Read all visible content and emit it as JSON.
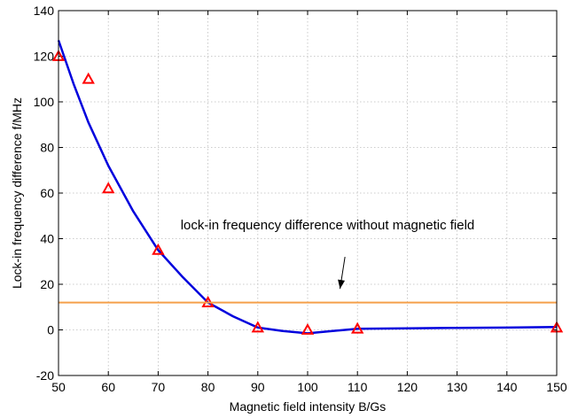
{
  "chart_data": {
    "type": "line",
    "title": "",
    "xlabel": "Magnetic field intensity B/Gs",
    "ylabel": "Lock-in frequency difference f/MHz",
    "xlim": [
      50,
      150
    ],
    "ylim": [
      -20,
      140
    ],
    "xticks": [
      50,
      60,
      70,
      80,
      90,
      100,
      110,
      120,
      130,
      140,
      150
    ],
    "yticks": [
      -20,
      0,
      20,
      40,
      60,
      80,
      100,
      120,
      140
    ],
    "grid": true,
    "series": [
      {
        "kind": "line",
        "color": "#0000dd",
        "x": [
          50,
          53,
          56,
          60,
          65,
          70,
          75,
          80,
          85,
          90,
          95,
          100,
          105,
          110,
          120,
          130,
          140,
          150
        ],
        "y": [
          127,
          108,
          91,
          72,
          52,
          35,
          23,
          12,
          6,
          1,
          -0.5,
          -1.5,
          -0.5,
          0.5,
          0.7,
          0.9,
          1.0,
          1.3
        ]
      },
      {
        "kind": "markers",
        "marker": "triangle",
        "color": "#ff0000",
        "x": [
          50,
          56,
          60,
          70,
          80,
          90,
          100,
          110,
          150
        ],
        "y": [
          120,
          110,
          62,
          35,
          12,
          1,
          0,
          0.5,
          1
        ]
      },
      {
        "kind": "hline",
        "color": "#f5a04a",
        "y": 12
      }
    ],
    "annotations": [
      {
        "text": "lock-in frequency difference without magnetic field",
        "anchor_x": 74.5,
        "anchor_y": 44,
        "arrow_from": [
          107.5,
          32
        ],
        "arrow_to": [
          106.5,
          18
        ]
      }
    ]
  }
}
